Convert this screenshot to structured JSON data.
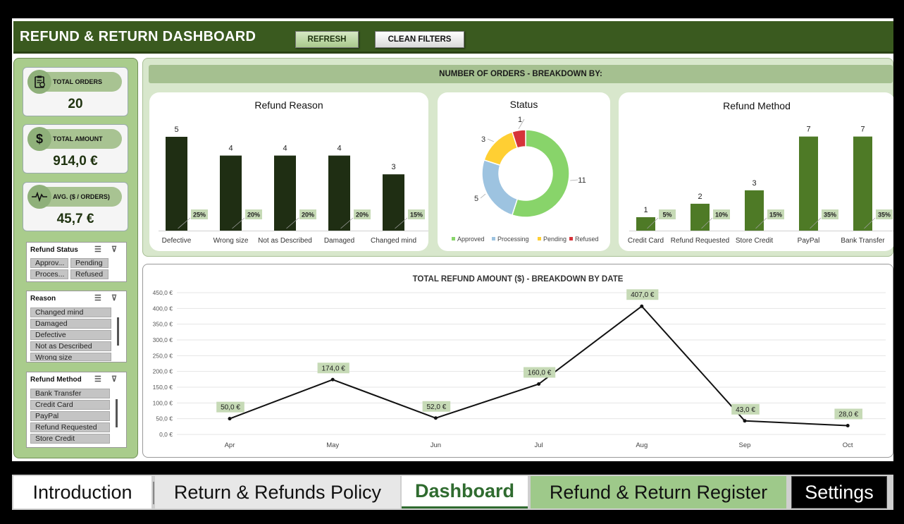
{
  "header": {
    "title": "REFUND & RETURN DASHBOARD",
    "refresh_label": "REFRESH",
    "clean_filters_label": "CLEAN FILTERS"
  },
  "kpis": [
    {
      "icon": "clipboard-icon",
      "label": "TOTAL ORDERS",
      "value": "20"
    },
    {
      "icon": "dollar-icon",
      "label": "TOTAL AMOUNT",
      "value": "914,0 €"
    },
    {
      "icon": "pulse-icon",
      "label": "AVG. ($ / ORDERS)",
      "value": "45,7 €"
    }
  ],
  "slicers": {
    "status": {
      "title": "Refund Status",
      "items": [
        "Approv...",
        "Pending",
        "Proces...",
        "Refused"
      ]
    },
    "reason": {
      "title": "Reason",
      "items": [
        "Changed mind",
        "Damaged",
        "Defective",
        "Not as Described",
        "Wrong size"
      ]
    },
    "method": {
      "title": "Refund Method",
      "items": [
        "Bank Transfer",
        "Credit Card",
        "PayPal",
        "Refund Requested",
        "Store Credit"
      ]
    }
  },
  "breakdown_title": "NUMBER OF ORDERS - BREAKDOWN BY:",
  "colors": {
    "dark_green": "#1f2e13",
    "mid_green": "#4e7a26",
    "approved": "#88d46a",
    "processing": "#9dc3e0",
    "pending": "#ffcf33",
    "refused": "#d6333a"
  },
  "chart_data": [
    {
      "type": "bar",
      "title": "Refund Reason",
      "categories": [
        "Defective",
        "Wrong size",
        "Not as Described",
        "Damaged",
        "Changed mind"
      ],
      "values": [
        5,
        4,
        4,
        4,
        3
      ],
      "percent_labels": [
        "25%",
        "20%",
        "20%",
        "20%",
        "15%"
      ],
      "value_labels": [
        "5",
        "4",
        "4",
        "4",
        "3"
      ],
      "ylim": [
        0,
        5.3
      ]
    },
    {
      "type": "pie",
      "title": "Status",
      "categories": [
        "Approved",
        "Processing",
        "Pending",
        "Refused"
      ],
      "values": [
        11,
        5,
        3,
        1
      ],
      "value_labels": [
        "11",
        "5",
        "3",
        "1"
      ],
      "legend": "bottom"
    },
    {
      "type": "bar",
      "title": "Refund Method",
      "categories": [
        "Credit Card",
        "Refund Requested",
        "Store Credit",
        "PayPal",
        "Bank Transfer"
      ],
      "values": [
        1,
        2,
        3,
        7,
        7
      ],
      "percent_labels": [
        "5%",
        "10%",
        "15%",
        "35%",
        "35%"
      ],
      "value_labels": [
        "1",
        "2",
        "3",
        "7",
        "7"
      ],
      "ylim": [
        0,
        7.4
      ]
    },
    {
      "type": "line",
      "title": "TOTAL REFUND AMOUNT ($) - BREAKDOWN BY DATE",
      "x": [
        "Apr",
        "May",
        "Jun",
        "Jul",
        "Aug",
        "Sep",
        "Oct"
      ],
      "values": [
        50.0,
        174.0,
        52.0,
        160.0,
        407.0,
        43.0,
        28.0
      ],
      "value_labels": [
        "50,0 €",
        "174,0 €",
        "52,0 €",
        "160,0 €",
        "407,0 €",
        "43,0 €",
        "28,0 €"
      ],
      "y_ticks": [
        "0,0 €",
        "50,0 €",
        "100,0 €",
        "150,0 €",
        "200,0 €",
        "250,0 €",
        "300,0 €",
        "350,0 €",
        "400,0 €",
        "450,0 €"
      ],
      "ylim": [
        0,
        450
      ],
      "grid": true
    }
  ],
  "tabs": [
    "Introduction",
    "Return & Refunds Policy",
    "Dashboard",
    "Refund & Return Register",
    "Settings"
  ]
}
